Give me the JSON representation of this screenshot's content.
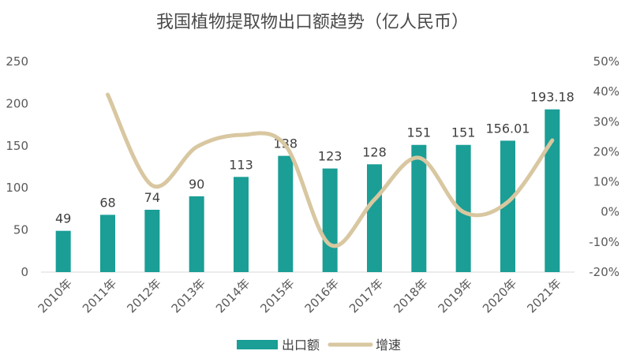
{
  "chart_data": {
    "type": "bar+line",
    "title": "我国植物提取物出口额趋势（亿人民币）",
    "categories": [
      "2010年",
      "2011年",
      "2012年",
      "2013年",
      "2014年",
      "2015年",
      "2016年",
      "2017年",
      "2018年",
      "2019年",
      "2020年",
      "2021年"
    ],
    "series": [
      {
        "name": "出口额",
        "type": "bar",
        "axis": "left",
        "values": [
          49,
          68,
          74,
          90,
          113,
          138,
          123,
          128,
          151,
          151,
          156.01,
          193.18
        ],
        "labels": [
          "49",
          "68",
          "74",
          "90",
          "113",
          "138",
          "123",
          "128",
          "151",
          "151",
          "156.01",
          "193.18"
        ],
        "color": "#1a9e96"
      },
      {
        "name": "增速",
        "type": "line",
        "axis": "right",
        "values": [
          null,
          0.39,
          0.088,
          0.216,
          0.256,
          0.221,
          -0.109,
          0.041,
          0.18,
          0.0,
          0.033,
          0.238
        ],
        "color": "#d8c7a0"
      }
    ],
    "y_left": {
      "min": 0,
      "max": 250,
      "ticks": [
        "0",
        "50",
        "100",
        "150",
        "200",
        "250"
      ]
    },
    "y_right": {
      "min": -0.2,
      "max": 0.5,
      "ticks": [
        "-20%",
        "-10%",
        "0%",
        "10%",
        "20%",
        "30%",
        "40%",
        "50%"
      ]
    },
    "legend": {
      "position": "bottom",
      "items": [
        "出口额",
        "增速"
      ]
    },
    "grid": false
  }
}
